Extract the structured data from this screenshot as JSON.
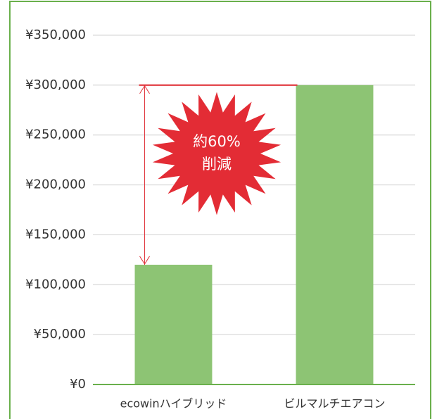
{
  "chart_data": {
    "type": "bar",
    "categories": [
      "ecowinハイブリッド",
      "ビルマルチエアコン"
    ],
    "values": [
      120000,
      300000
    ],
    "color": "#8dc474",
    "ylim": [
      0,
      350000
    ],
    "yticks": [
      {
        "value": 0,
        "label": "¥0"
      },
      {
        "value": 50000,
        "label": "¥50,000"
      },
      {
        "value": 100000,
        "label": "¥100,000"
      },
      {
        "value": 150000,
        "label": "¥150,000"
      },
      {
        "value": 200000,
        "label": "¥200,000"
      },
      {
        "value": 250000,
        "label": "¥250,000"
      },
      {
        "value": 300000,
        "label": "¥300,000"
      },
      {
        "value": 350000,
        "label": "¥350,000"
      }
    ],
    "grid": true,
    "annotation": [
      "約60%",
      "削減"
    ]
  }
}
